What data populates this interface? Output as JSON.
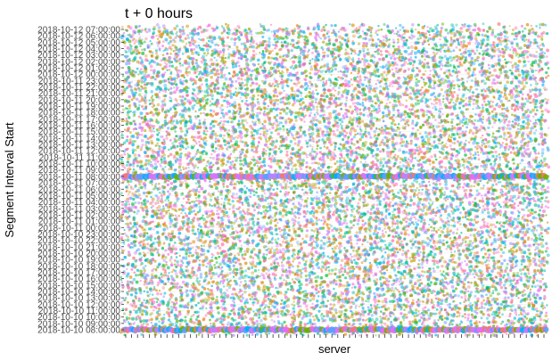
{
  "chart_data": {
    "type": "scatter",
    "title": "t + 0 hours",
    "xlabel": "server",
    "ylabel": "Segment Interval Start",
    "x_tick_labels": [],
    "y_tick_labels": [
      "2018-10-10 08:00:00",
      "2018-10-10 09:00:00",
      "2018-10-10 10:00:00",
      "2018-10-10 11:00:00",
      "2018-10-10 12:00:00",
      "2018-10-10 13:00:00",
      "2018-10-10 14:00:00",
      "2018-10-10 15:00:00",
      "2018-10-10 16:00:00",
      "2018-10-10 17:00:00",
      "2018-10-10 18:00:00",
      "2018-10-10 19:00:00",
      "2018-10-10 20:00:00",
      "2018-10-10 21:00:00",
      "2018-10-10 22:00:00",
      "2018-10-10 23:00:00",
      "2018-10-11 00:00:00",
      "2018-10-11 01:00:00",
      "2018-10-11 02:00:00",
      "2018-10-11 03:00:00",
      "2018-10-11 04:00:00",
      "2018-10-11 05:00:00",
      "2018-10-11 06:00:00",
      "2018-10-11 07:00:00",
      "2018-10-11 08:00:00",
      "2018-10-11 09:00:00",
      "2018-10-11 10:00:00",
      "2018-10-11 11:00:00",
      "2018-10-11 12:00:00",
      "2018-10-11 13:00:00",
      "2018-10-11 14:00:00",
      "2018-10-11 15:00:00",
      "2018-10-11 16:00:00",
      "2018-10-11 17:00:00",
      "2018-10-11 18:00:00",
      "2018-10-11 19:00:00",
      "2018-10-11 20:00:00",
      "2018-10-11 21:00:00",
      "2018-10-11 22:00:00",
      "2018-10-11 23:00:00",
      "2018-10-12 00:00:00",
      "2018-10-12 01:00:00",
      "2018-10-12 02:00:00",
      "2018-10-12 03:00:00",
      "2018-10-12 04:00:00",
      "2018-10-12 05:00:00",
      "2018-10-12 06:00:00",
      "2018-10-12 07:00:00"
    ],
    "highlighted_rows": [
      "2018-10-10 08:00:00",
      "2018-10-11 08:00:00"
    ],
    "server_count": 72,
    "legend": "none",
    "grid": true,
    "colors": [
      "#F8766D",
      "#E58700",
      "#C99800",
      "#A3A500",
      "#6BB100",
      "#00BA38",
      "#00BF7D",
      "#00C0AF",
      "#00BCD8",
      "#00B0F6",
      "#619CFF",
      "#B983FF",
      "#E76BF3",
      "#FD61D1",
      "#FF67A4"
    ],
    "highlight_colors": [
      "#E76BF3",
      "#619CFF",
      "#00B0F6",
      "#6BB100",
      "#F8766D",
      "#B983FF"
    ]
  }
}
